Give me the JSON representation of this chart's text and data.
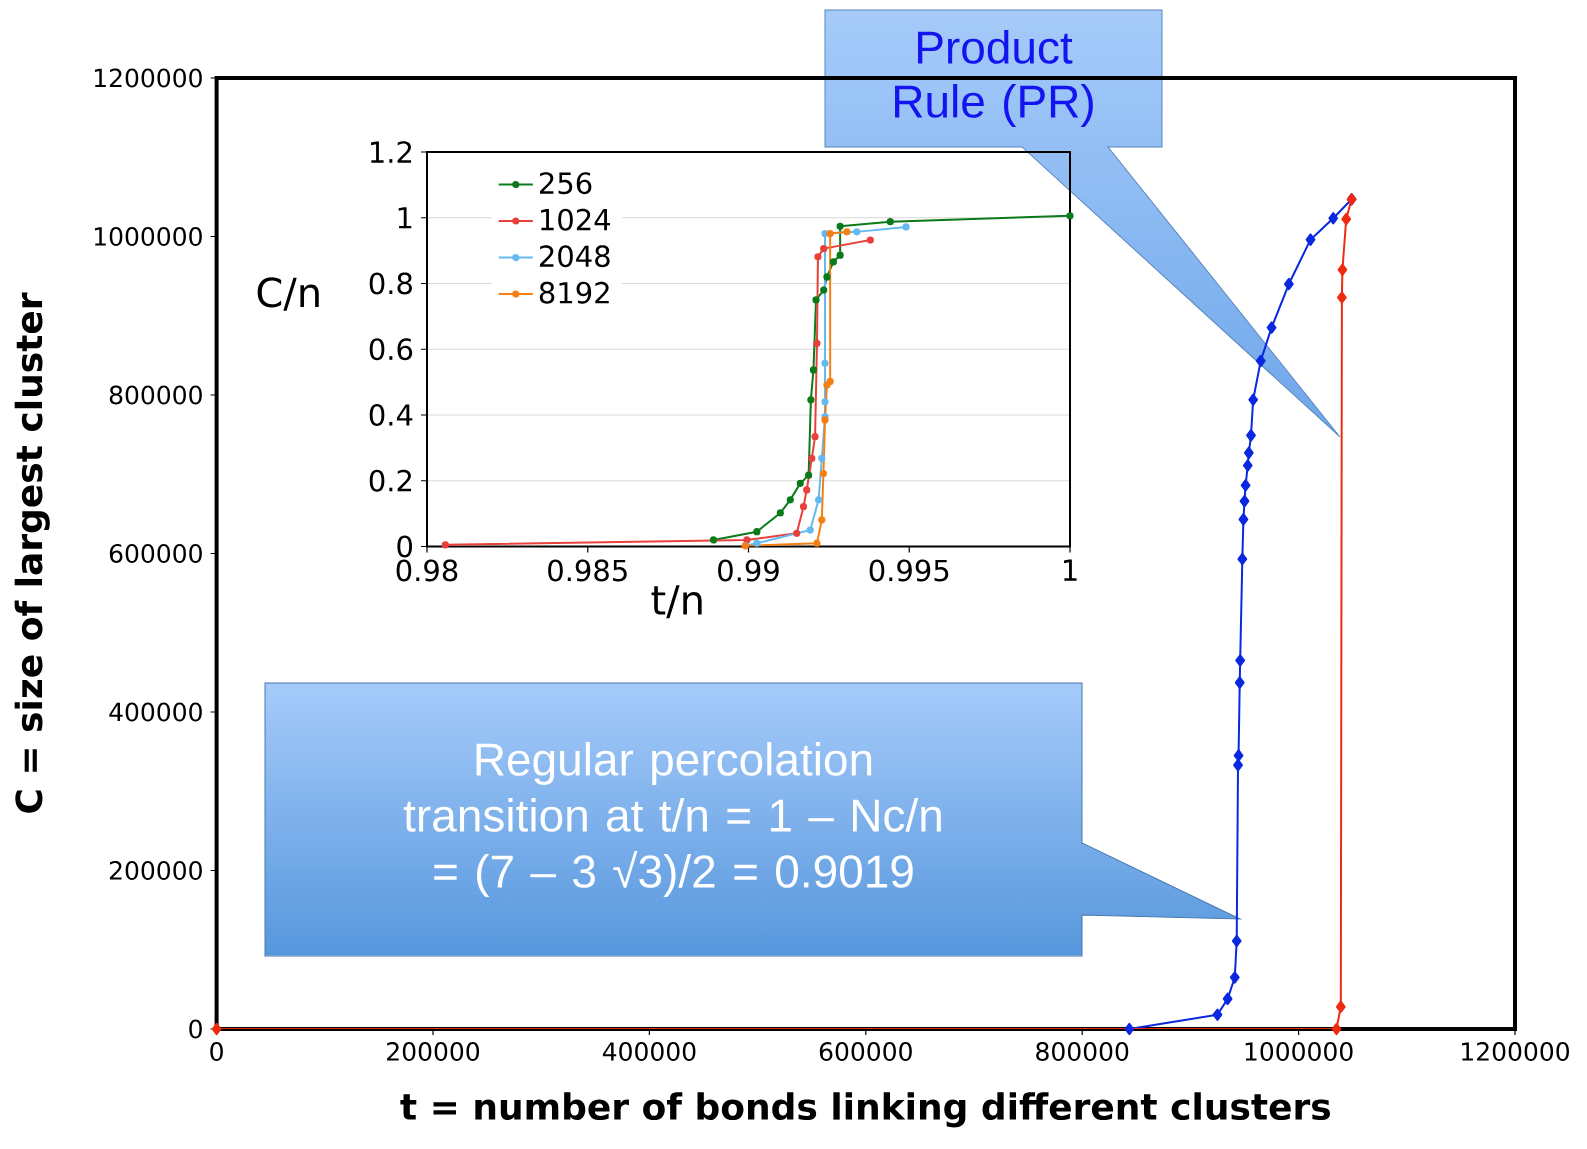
{
  "chart_data": [
    {
      "type": "line",
      "xlabel": "t = number of bonds linking different clusters",
      "ylabel": "C = size of largest cluster",
      "xlim": [
        0,
        1200000
      ],
      "ylim": [
        0,
        1200000
      ],
      "xticks": [
        0,
        200000,
        400000,
        600000,
        800000,
        1000000,
        1200000
      ],
      "yticks": [
        0,
        200000,
        400000,
        600000,
        800000,
        1000000,
        1200000
      ],
      "marker": "diamond",
      "grid": false,
      "legend": false,
      "series": [
        {
          "color": "#0a28e0",
          "x": [
            843600,
            925000,
            934400,
            941000,
            942800,
            944000,
            944500,
            945600,
            946000,
            948000,
            949000,
            950000,
            951000,
            953000,
            954000,
            956000,
            958000,
            965000,
            975000,
            991000,
            1011000,
            1032000,
            1049000
          ],
          "values": [
            0,
            18000,
            38000,
            65000,
            111000,
            333000,
            345000,
            437000,
            465000,
            593000,
            643000,
            666000,
            686000,
            711000,
            727000,
            749000,
            794000,
            843000,
            885000,
            940000,
            996000,
            1023000,
            1047000
          ]
        },
        {
          "color": "#ee2a10",
          "x": [
            0,
            1035000,
            1039000,
            1040000,
            1040500,
            1044000,
            1049000
          ],
          "values": [
            0,
            0,
            28000,
            923000,
            958000,
            1022000,
            1047000
          ]
        }
      ],
      "annotations": [
        "Product Rule (PR)",
        "Regular percolation transition at t/n = 1 – Nc/n = (7 – 3 √3)/2 = 0.9019"
      ]
    },
    {
      "type": "line",
      "xlabel": "t/n",
      "ylabel": "C/n",
      "xlim": [
        0.98,
        1
      ],
      "ylim": [
        0,
        1.2
      ],
      "xticks": [
        0.98,
        0.985,
        0.99,
        0.995,
        1
      ],
      "yticks": [
        0,
        0.2,
        0.4,
        0.6,
        0.8,
        1,
        1.2
      ],
      "marker": "circle",
      "grid": "y",
      "legend": "top left",
      "series": [
        {
          "name": "256",
          "color": "#0b7a1a",
          "x": [
            0.98891,
            0.99026,
            0.99099,
            0.9913,
            0.99161,
            0.99187,
            0.99194,
            0.99202,
            0.9921,
            0.99234,
            0.99244,
            0.99264,
            0.99285,
            0.99285,
            0.99441,
            1.0
          ],
          "values": [
            0.02,
            0.045,
            0.102,
            0.142,
            0.192,
            0.217,
            0.446,
            0.537,
            0.75,
            0.78,
            0.82,
            0.866,
            0.886,
            0.974,
            0.988,
            1.006
          ]
        },
        {
          "name": "1024",
          "color": "#e8413c",
          "x": [
            0.98057,
            0.98995,
            0.9915,
            0.99171,
            0.99181,
            0.99197,
            0.99207,
            0.99213,
            0.99216,
            0.99234,
            0.99379
          ],
          "values": [
            0.005,
            0.02,
            0.04,
            0.121,
            0.172,
            0.268,
            0.334,
            0.618,
            0.881,
            0.906,
            0.932
          ]
        },
        {
          "name": "2048",
          "color": "#66b8f0",
          "x": [
            0.9899,
            0.99026,
            0.99192,
            0.99218,
            0.99228,
            0.99238,
            0.99238,
            0.99238,
            0.99238,
            0.99337,
            0.9949
          ],
          "values": [
            0.003,
            0.01,
            0.05,
            0.142,
            0.268,
            0.395,
            0.44,
            0.557,
            0.952,
            0.957,
            0.972
          ]
        },
        {
          "name": "8192",
          "color": "#f57f12",
          "x": [
            0.9899,
            0.99213,
            0.99228,
            0.99233,
            0.99238,
            0.99244,
            0.99254,
            0.99254,
            0.99306
          ],
          "values": [
            0.002,
            0.01,
            0.081,
            0.222,
            0.385,
            0.491,
            0.502,
            0.952,
            0.957
          ]
        }
      ]
    }
  ]
}
